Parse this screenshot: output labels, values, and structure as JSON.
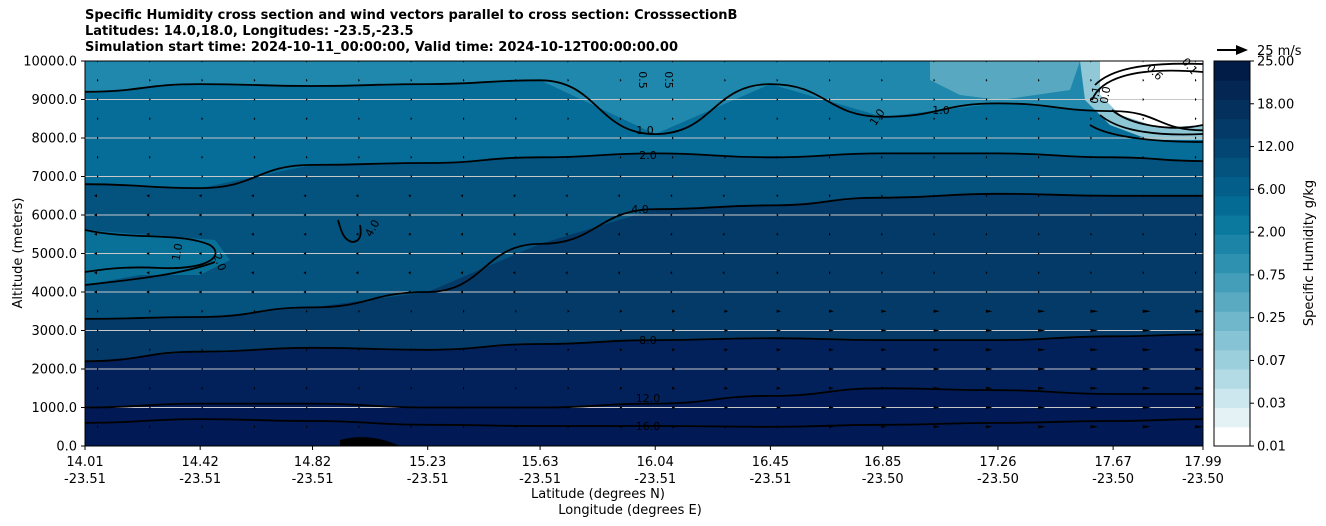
{
  "chart_data": {
    "type": "contourf",
    "title_lines": [
      "Specific Humidity cross section and wind vectors parallel to cross section: CrosssectionB",
      "Latitudes: 14.0,18.0, Longitudes: -23.5,-23.5",
      "Simulation start time: 2024-10-11_00:00:00, Valid time: 2024-10-12T00:00:00.00"
    ],
    "ylabel": "Altitude (meters)",
    "xlabel_lat": "Latitude (degrees N)",
    "xlabel_lon": "Longitude (degrees E)",
    "ylim": [
      0,
      10000
    ],
    "y_ticks": [
      "0.0",
      "1000.0",
      "2000.0",
      "3000.0",
      "4000.0",
      "5000.0",
      "6000.0",
      "7000.0",
      "8000.0",
      "9000.0",
      "10000.0"
    ],
    "x_ticks": [
      {
        "lat": "14.01",
        "lon": "-23.51"
      },
      {
        "lat": "14.42",
        "lon": "-23.51"
      },
      {
        "lat": "14.82",
        "lon": "-23.51"
      },
      {
        "lat": "15.23",
        "lon": "-23.51"
      },
      {
        "lat": "15.63",
        "lon": "-23.51"
      },
      {
        "lat": "16.04",
        "lon": "-23.51"
      },
      {
        "lat": "16.45",
        "lon": "-23.51"
      },
      {
        "lat": "16.85",
        "lon": "-23.50"
      },
      {
        "lat": "17.26",
        "lon": "-23.50"
      },
      {
        "lat": "17.67",
        "lon": "-23.50"
      },
      {
        "lat": "17.99",
        "lon": "-23.50"
      }
    ],
    "colorbar": {
      "label": "Specific Humidity g/kg",
      "tick_labels": [
        "0.01",
        "0.03",
        "0.07",
        "0.25",
        "0.75",
        "2.00",
        "6.00",
        "12.00",
        "18.00",
        "25.00"
      ],
      "colors": [
        "#ffffff",
        "#e4f2f5",
        "#cce7ed",
        "#b2dbe5",
        "#9ccfdc",
        "#86c3d4",
        "#70b7cb",
        "#5aaac2",
        "#449eb9",
        "#2f91b0",
        "#1c85a7",
        "#0b789e",
        "#036b94",
        "#035f89",
        "#04527e",
        "#044673",
        "#043a68",
        "#04305d",
        "#032653",
        "#021c48"
      ]
    },
    "contour_labels": [
      "0.5",
      "0.5",
      "1.0",
      "1.0",
      "1.0",
      "1.0",
      "2.0",
      "2.0",
      "4.0",
      "4.0",
      "8.0",
      "12.0",
      "16.0",
      "0.1",
      "0.0",
      "0.6",
      "0.1"
    ],
    "wind_reference": "25 m/s",
    "series": [
      {
        "name": "16.0 g/kg contour",
        "x": [
          14.01,
          14.42,
          14.82,
          15.23,
          15.63,
          16.04,
          16.45,
          16.85,
          17.26,
          17.67,
          17.99
        ],
        "altitude_m": [
          600,
          700,
          650,
          550,
          520,
          520,
          500,
          550,
          600,
          650,
          700
        ]
      },
      {
        "name": "12.0 g/kg contour",
        "x": [
          14.01,
          14.42,
          14.82,
          15.23,
          15.63,
          16.04,
          16.45,
          16.85,
          17.26,
          17.67,
          17.99
        ],
        "altitude_m": [
          1000,
          1100,
          1100,
          1000,
          1000,
          1100,
          1300,
          1500,
          1450,
          1350,
          1350
        ]
      },
      {
        "name": "8.0 g/kg contour",
        "x": [
          14.01,
          14.42,
          14.82,
          15.23,
          15.63,
          16.04,
          16.45,
          16.85,
          17.26,
          17.67,
          17.99
        ],
        "altitude_m": [
          2200,
          2450,
          2550,
          2500,
          2650,
          2750,
          2800,
          2750,
          2750,
          2850,
          2900
        ]
      },
      {
        "name": "4.0 g/kg contour",
        "x": [
          14.01,
          14.42,
          14.82,
          15.23,
          15.63,
          16.04,
          16.45,
          16.85,
          17.26,
          17.67,
          17.99
        ],
        "altitude_m": [
          3300,
          3350,
          3600,
          4000,
          5250,
          6150,
          6250,
          6450,
          6550,
          6500,
          6500
        ]
      },
      {
        "name": "2.0 g/kg contour",
        "x": [
          14.01,
          14.42,
          14.82,
          15.23,
          15.63,
          16.04,
          16.45,
          16.85,
          17.26,
          17.67,
          17.99
        ],
        "altitude_m": [
          6800,
          6700,
          7300,
          7350,
          7500,
          7600,
          7500,
          7600,
          7600,
          7500,
          7400
        ]
      },
      {
        "name": "1.0 g/kg contour",
        "x": [
          14.01,
          14.42,
          14.82,
          15.23,
          15.63,
          16.04,
          16.45,
          16.85,
          17.26,
          17.67,
          17.99
        ],
        "altitude_m": [
          9200,
          9400,
          9350,
          9400,
          9500,
          8100,
          9400,
          8550,
          8900,
          8700,
          8200
        ]
      }
    ]
  }
}
